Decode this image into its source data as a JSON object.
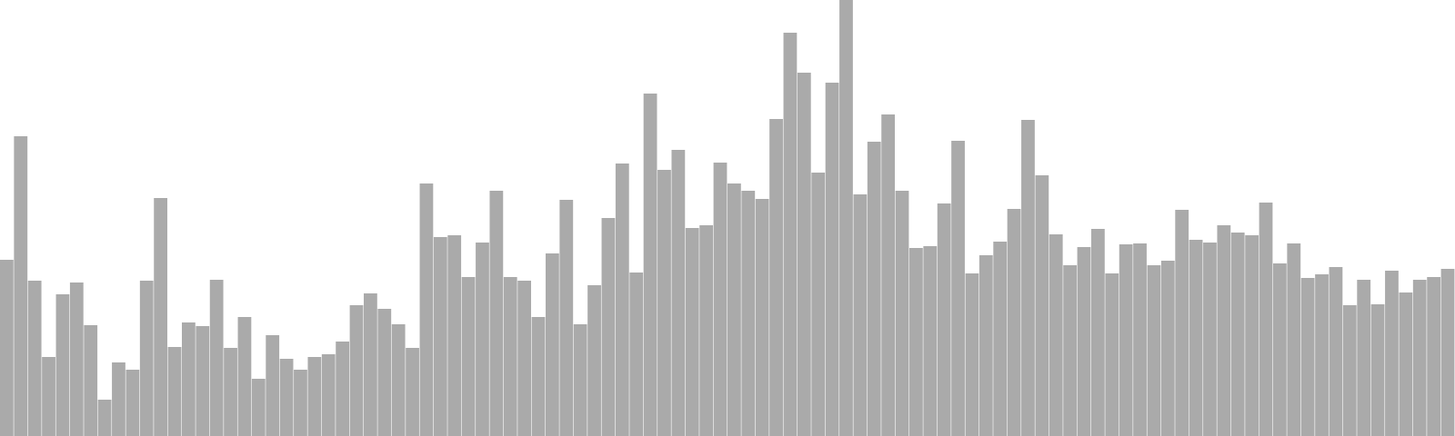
{
  "chart_data": {
    "type": "bar",
    "title": "",
    "xlabel": "",
    "ylabel": "",
    "ylim": [
      0,
      480
    ],
    "grid": false,
    "legend": "none",
    "colors": {
      "bar": "#aaaaaa",
      "background": "#ffffff",
      "separator": "#ffffff"
    },
    "values": [
      194,
      330,
      171,
      87,
      156,
      169,
      122,
      40,
      81,
      73,
      171,
      262,
      98,
      125,
      121,
      172,
      97,
      131,
      63,
      111,
      85,
      73,
      87,
      90,
      104,
      144,
      157,
      140,
      123,
      97,
      278,
      219,
      221,
      175,
      213,
      270,
      175,
      171,
      131,
      201,
      260,
      123,
      166,
      240,
      300,
      180,
      377,
      293,
      315,
      229,
      232,
      301,
      278,
      270,
      261,
      349,
      444,
      400,
      290,
      389,
      480,
      266,
      324,
      354,
      270,
      207,
      209,
      256,
      325,
      179,
      199,
      214,
      250,
      348,
      287,
      222,
      188,
      208,
      228,
      179,
      211,
      212,
      188,
      193,
      249,
      216,
      213,
      232,
      224,
      221,
      257,
      190,
      212,
      174,
      178,
      186,
      144,
      172,
      145,
      182,
      158,
      172,
      175,
      184
    ]
  }
}
